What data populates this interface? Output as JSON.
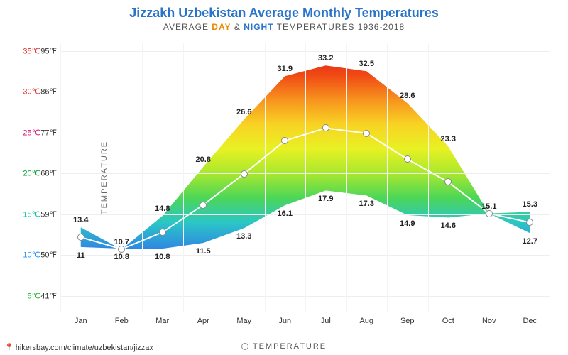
{
  "title": "Jizzakh Uzbekistan Average Monthly Temperatures",
  "title_color": "#2973c9",
  "subtitle_prefix": "AVERAGE ",
  "subtitle_day": "DAY",
  "subtitle_amp": " & ",
  "subtitle_night": "NIGHT",
  "subtitle_suffix": " TEMPERATURES 1936-2018",
  "day_color": "#e88a00",
  "night_color": "#2973c9",
  "yaxis_label": "TEMPERATURE",
  "legend_label": "TEMPERATURE",
  "footer_url": "hikersbay.com/climate/uzbekistan/jizzax",
  "chart": {
    "type": "area-range",
    "months": [
      "Jan",
      "Feb",
      "Mar",
      "Apr",
      "May",
      "Jun",
      "Jul",
      "Aug",
      "Sep",
      "Oct",
      "Nov",
      "Dec"
    ],
    "day_values": [
      13.4,
      10.7,
      14.8,
      20.8,
      26.6,
      31.9,
      33.2,
      32.5,
      28.6,
      23.3,
      15.1,
      15.3
    ],
    "night_values": [
      11.0,
      10.8,
      10.8,
      11.5,
      13.3,
      16.1,
      17.9,
      17.3,
      14.9,
      14.6,
      15.1,
      12.7
    ],
    "mid_values": [
      12.2,
      10.75,
      12.8,
      16.15,
      19.95,
      24.0,
      25.55,
      24.9,
      21.75,
      18.95,
      15.1,
      14.0
    ],
    "day_labels": [
      "13.4",
      "10.7",
      "14.8",
      "20.8",
      "26.6",
      "31.9",
      "33.2",
      "32.5",
      "28.6",
      "23.3",
      "15.1",
      "15.3"
    ],
    "night_labels": [
      "11",
      "10.8",
      "10.8",
      "11.5",
      "13.3",
      "16.1",
      "17.9",
      "17.3",
      "14.9",
      "14.6",
      "",
      "12.7"
    ],
    "y_min_c": 3.0,
    "y_max_c": 36.0,
    "y_ticks_c": [
      5,
      10,
      15,
      20,
      25,
      30,
      35
    ],
    "y_ticks_c_labels": [
      "5℃",
      "10℃",
      "15℃",
      "20℃",
      "25℃",
      "30℃",
      "35℃"
    ],
    "y_ticks_f_labels": [
      "41℉",
      "50℉",
      "59℉",
      "68℉",
      "77℉",
      "86℉",
      "95℉"
    ],
    "y_tick_colors": [
      "#27b327",
      "#1e90ff",
      "#00c0a0",
      "#00a030",
      "#d41870",
      "#e03030",
      "#e03030"
    ],
    "grid_color": "#eeeeee",
    "background_color": "#ffffff",
    "marker_border": "#888888",
    "marker_fill": "#ffffff",
    "mid_line_color": "#ffffff",
    "gradient_stops": [
      {
        "c": 35,
        "color": "#e3201c"
      },
      {
        "c": 32,
        "color": "#f04a14"
      },
      {
        "c": 29,
        "color": "#f7931e"
      },
      {
        "c": 26,
        "color": "#f8d323"
      },
      {
        "c": 23,
        "color": "#e8f123"
      },
      {
        "c": 20,
        "color": "#a8e82e"
      },
      {
        "c": 17,
        "color": "#4cd658"
      },
      {
        "c": 14,
        "color": "#2bc6c6"
      },
      {
        "c": 11,
        "color": "#2f8ce0"
      },
      {
        "c": 9,
        "color": "#2457c9"
      }
    ]
  }
}
